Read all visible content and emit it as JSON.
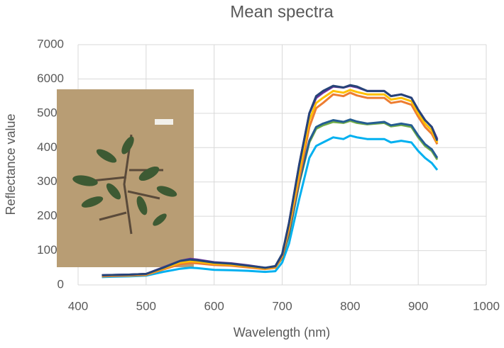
{
  "chart_data": {
    "type": "line",
    "title": "Mean spectra",
    "x_label": "Wavelength (nm)",
    "y_label": "Reflectance value",
    "x": [
      435,
      450,
      475,
      500,
      525,
      550,
      565,
      575,
      600,
      625,
      650,
      675,
      690,
      700,
      710,
      725,
      740,
      750,
      760,
      775,
      790,
      800,
      810,
      825,
      850,
      860,
      875,
      890,
      900,
      910,
      920,
      928
    ],
    "series": [
      {
        "color": "#00b0f0",
        "values": [
          230,
          240,
          250,
          270,
          380,
          470,
          500,
          490,
          440,
          430,
          410,
          380,
          400,
          650,
          1200,
          2500,
          3700,
          4050,
          4150,
          4300,
          4250,
          4350,
          4300,
          4250,
          4250,
          4150,
          4200,
          4150,
          3900,
          3700,
          3550,
          3350
        ]
      },
      {
        "color": "#70ad47",
        "values": [
          270,
          280,
          290,
          310,
          460,
          620,
          670,
          660,
          600,
          570,
          520,
          470,
          500,
          780,
          1450,
          2950,
          4150,
          4550,
          4650,
          4750,
          4720,
          4780,
          4720,
          4680,
          4720,
          4620,
          4660,
          4600,
          4300,
          4050,
          3900,
          3650
        ]
      },
      {
        "color": "#255e91",
        "values": [
          280,
          290,
          300,
          320,
          480,
          650,
          700,
          690,
          620,
          590,
          540,
          480,
          520,
          800,
          1500,
          3000,
          4200,
          4600,
          4700,
          4800,
          4750,
          4820,
          4760,
          4700,
          4750,
          4650,
          4700,
          4650,
          4350,
          4100,
          3950,
          3700
        ]
      },
      {
        "color": "#ed7d31",
        "values": [
          250,
          260,
          270,
          290,
          450,
          600,
          640,
          630,
          580,
          560,
          510,
          460,
          500,
          820,
          1600,
          3100,
          4600,
          5150,
          5300,
          5550,
          5500,
          5600,
          5520,
          5450,
          5450,
          5300,
          5350,
          5250,
          4900,
          4600,
          4400,
          4100
        ]
      },
      {
        "color": "#ffc000",
        "values": [
          270,
          280,
          290,
          310,
          480,
          650,
          690,
          680,
          620,
          590,
          540,
          480,
          520,
          850,
          1700,
          3300,
          4800,
          5300,
          5450,
          5650,
          5600,
          5680,
          5620,
          5550,
          5550,
          5400,
          5450,
          5350,
          5000,
          4700,
          4500,
          4150
        ]
      },
      {
        "color": "#7030a0",
        "values": [
          280,
          290,
          300,
          320,
          510,
          700,
          760,
          740,
          660,
          630,
          570,
          500,
          540,
          880,
          1800,
          3500,
          5000,
          5450,
          5600,
          5780,
          5750,
          5800,
          5760,
          5650,
          5650,
          5500,
          5550,
          5450,
          5100,
          4800,
          4600,
          4250
        ]
      },
      {
        "color": "#264478",
        "values": [
          280,
          290,
          300,
          320,
          500,
          700,
          740,
          720,
          650,
          620,
          560,
          500,
          550,
          900,
          1800,
          3500,
          5000,
          5500,
          5650,
          5800,
          5750,
          5820,
          5780,
          5650,
          5650,
          5500,
          5550,
          5450,
          5100,
          4800,
          4600,
          4200
        ]
      }
    ],
    "xlim": [
      400,
      1000
    ],
    "xticks": [
      400,
      500,
      600,
      700,
      800,
      900,
      1000
    ],
    "ylim": [
      0,
      7000
    ],
    "yticks": [
      0,
      1000,
      2000,
      3000,
      4000,
      5000,
      6000,
      7000
    ],
    "grid": true
  }
}
